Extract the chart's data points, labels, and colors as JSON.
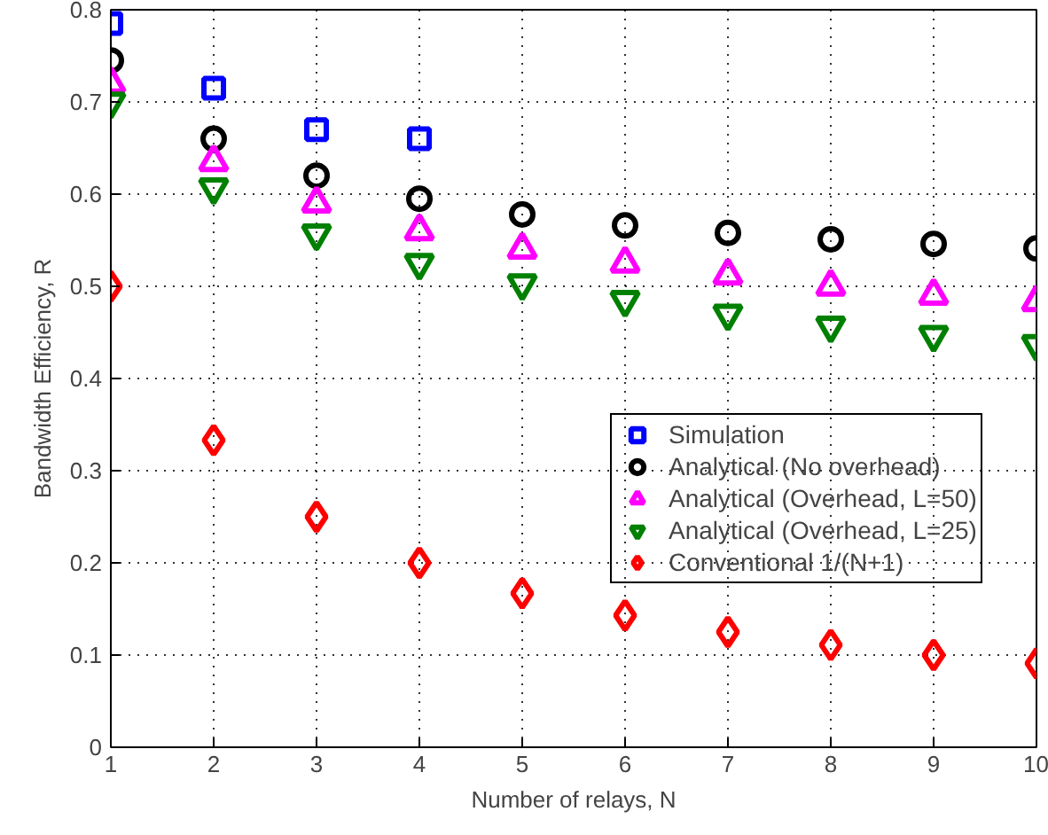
{
  "chart_data": {
    "type": "scatter",
    "xlabel": "Number of relays, N",
    "ylabel": "Bandwidth Efficiency, R",
    "x": [
      1,
      2,
      3,
      4,
      5,
      6,
      7,
      8,
      9,
      10
    ],
    "xlim": [
      1,
      10
    ],
    "xticks": [
      1,
      2,
      3,
      4,
      5,
      6,
      7,
      8,
      9,
      10
    ],
    "ylim": [
      0,
      0.8
    ],
    "yticks": [
      0,
      0.1,
      0.2,
      0.3,
      0.4,
      0.5,
      0.6,
      0.7,
      0.8
    ],
    "grid": true,
    "legend": "right",
    "series": [
      {
        "name": "Simulation",
        "color": "#0000ff",
        "marker": "square",
        "values": [
          0.785,
          0.715,
          0.67,
          0.66,
          null,
          null,
          null,
          null,
          null,
          null
        ]
      },
      {
        "name": "Analytical (No overhead)",
        "color": "#000000",
        "marker": "circle",
        "values": [
          0.745,
          0.66,
          0.62,
          0.595,
          0.578,
          0.566,
          0.558,
          0.551,
          0.546,
          0.541
        ]
      },
      {
        "name": "Analytical (Overhead, L=50)",
        "color": "#ff00ff",
        "marker": "triangle",
        "values": [
          0.72,
          0.635,
          0.59,
          0.56,
          0.54,
          0.525,
          0.512,
          0.5,
          0.49,
          0.483
        ]
      },
      {
        "name": "Analytical (Overhead, L=25)",
        "color": "#008000",
        "values": [
          0.7,
          0.607,
          0.557,
          0.525,
          0.503,
          0.485,
          0.47,
          0.457,
          0.447,
          0.437
        ]
      },
      {
        "name": "Conventional 1/(N+1)",
        "color": "#ff0000",
        "marker": "diamond",
        "values": [
          0.5,
          0.333,
          0.25,
          0.2,
          0.167,
          0.143,
          0.125,
          0.111,
          0.1,
          0.091
        ]
      }
    ]
  }
}
